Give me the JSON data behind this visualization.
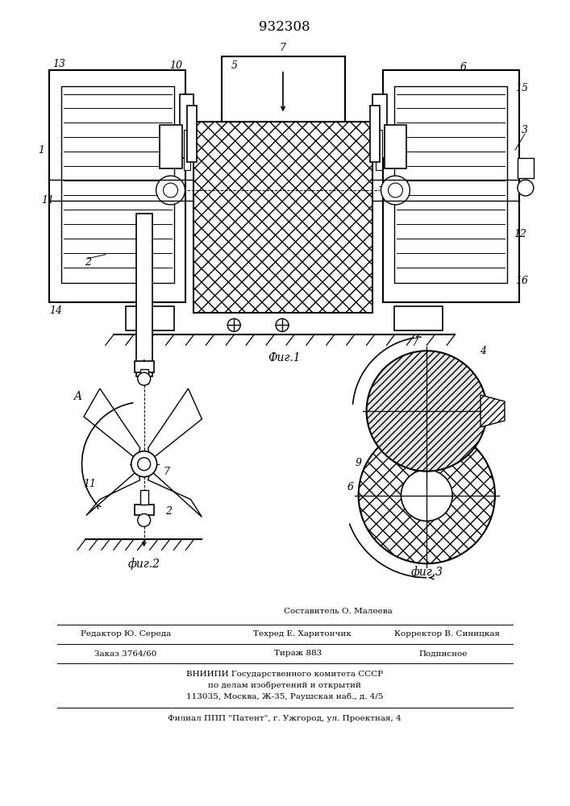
{
  "title": "932308",
  "bg_color": "#ffffff",
  "fig1_caption": "Фиг.1",
  "fig2_caption": "фиг.2",
  "fig3_caption": "фиг.3",
  "footer_line1": "Составитель О. Малеева",
  "footer_line2a": "Редактор Ю. Середа",
  "footer_line2b": "Техред Е. Харитончик",
  "footer_line2c": "Корректор В. Синицкая",
  "footer_line3a": "Заказ 3764/60",
  "footer_line3b": "Тираж 883",
  "footer_line3c": "Подписное",
  "footer_line4": "ВНИИПИ Государственного комитета СССР",
  "footer_line5": "по делам изобретений и открытий",
  "footer_line6": "113035, Москва, Ж-35, Раушская наб., д. 4/5",
  "footer_line7": "Филиал ППП \"Патент\", г. Ужгород, ул. Проектная, 4"
}
